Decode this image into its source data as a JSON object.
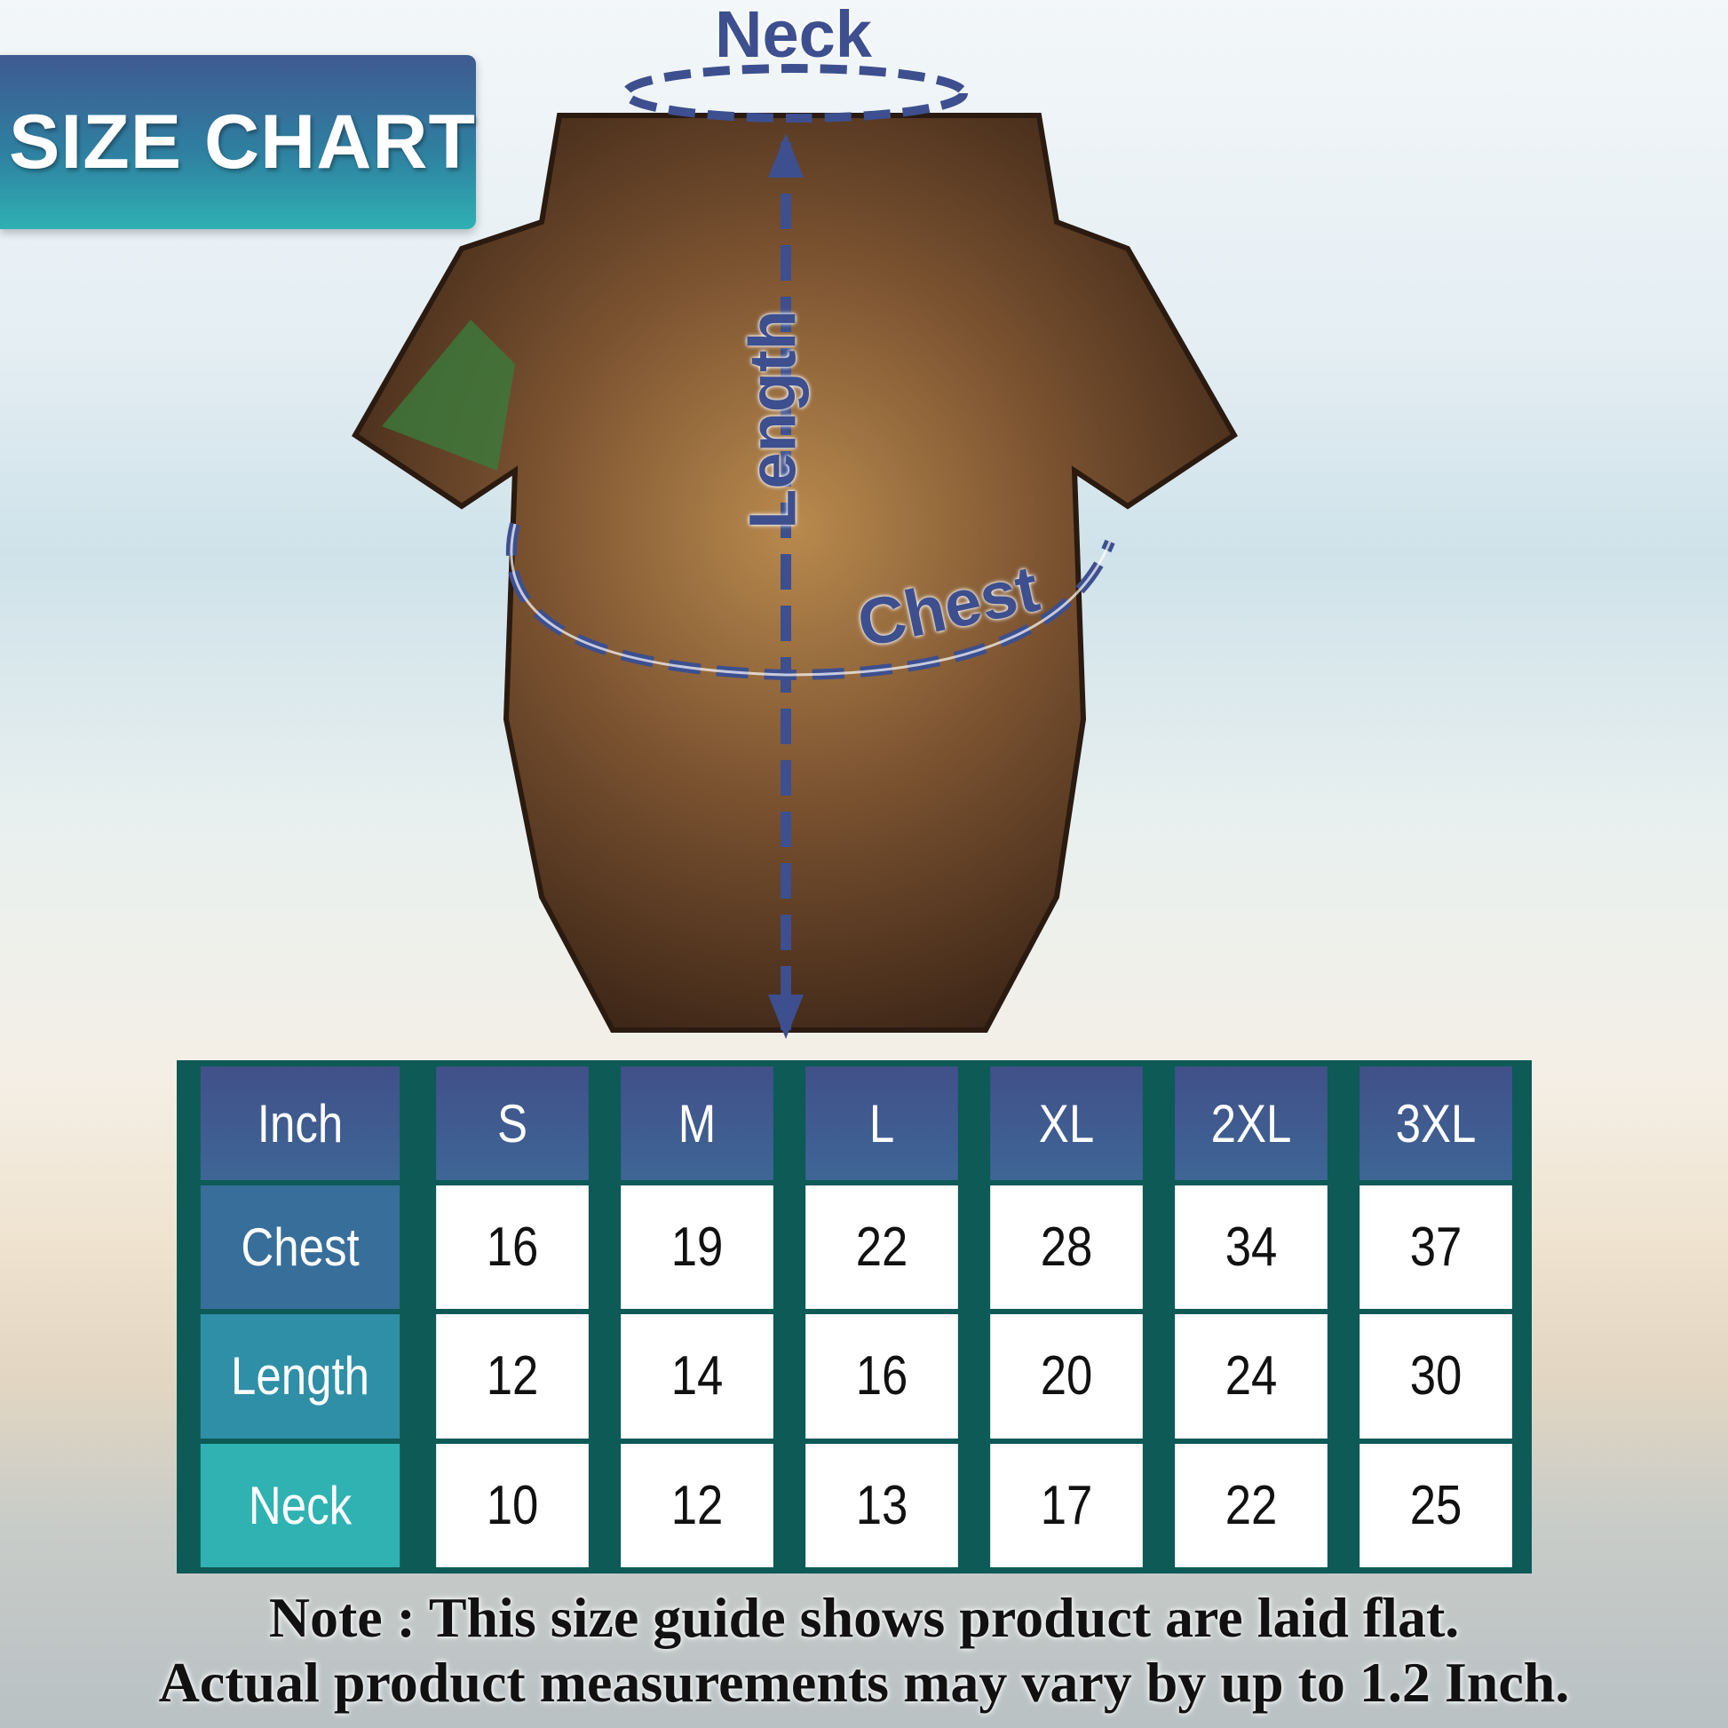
{
  "banner": {
    "title": "SIZE CHART"
  },
  "diagram": {
    "neck": "Neck",
    "length": "Length",
    "chest": "Chest"
  },
  "table": {
    "corner": "Inch",
    "sizes": [
      "S",
      "M",
      "L",
      "XL",
      "2XL",
      "3XL"
    ],
    "rows": [
      {
        "label": "Chest",
        "values": [
          "16",
          "19",
          "22",
          "28",
          "34",
          "37"
        ]
      },
      {
        "label": "Length",
        "values": [
          "12",
          "14",
          "16",
          "20",
          "24",
          "30"
        ]
      },
      {
        "label": "Neck",
        "values": [
          "10",
          "12",
          "13",
          "17",
          "22",
          "25"
        ]
      }
    ]
  },
  "note": {
    "line1": "Note : This size guide shows product are laid flat.",
    "line2": "Actual product measurements may vary by up to 1.2 Inch."
  },
  "colors": {
    "header": "#415089",
    "border": "#0d5a57",
    "arrow": "#3d4f8e"
  }
}
